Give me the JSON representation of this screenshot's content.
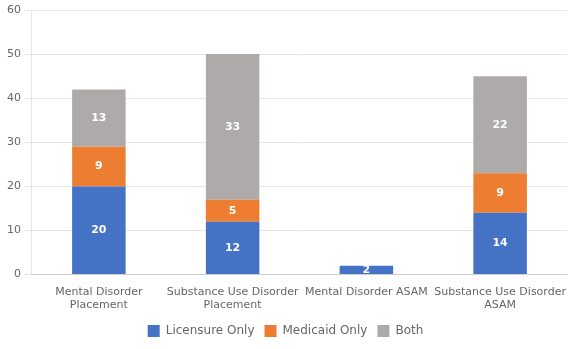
{
  "chart_data": {
    "type": "bar",
    "stacked": true,
    "categories": [
      "Mental Disorder\nPlacement",
      "Substance Use Disorder\nPlacement",
      "Mental Disorder ASAM",
      "Substance Use Disorder\nASAM"
    ],
    "series": [
      {
        "name": "Licensure Only",
        "color": "#4472C4",
        "values": [
          20,
          12,
          2,
          14
        ]
      },
      {
        "name": "Medicaid Only",
        "color": "#ED7D31",
        "values": [
          9,
          5,
          0,
          9
        ]
      },
      {
        "name": "Both",
        "color": "#AEAAAA",
        "values": [
          13,
          33,
          0,
          22
        ]
      }
    ],
    "ylim": [
      0,
      60
    ],
    "yticks": [
      0,
      10,
      20,
      30,
      40,
      50,
      60
    ],
    "grid": true,
    "legend": "bottom",
    "data_labels": true
  }
}
